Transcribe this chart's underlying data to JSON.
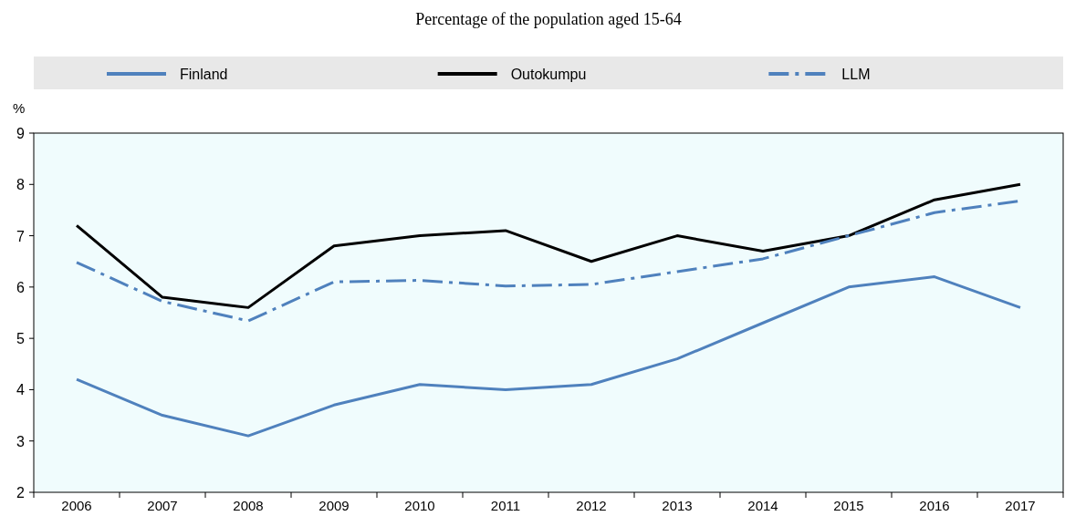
{
  "chart_data": {
    "type": "line",
    "title": "Percentage of the population aged 15-64",
    "ylabel": "%",
    "categories": [
      "2006",
      "2007",
      "2008",
      "2009",
      "2010",
      "2011",
      "2012",
      "2013",
      "2014",
      "2015",
      "2016",
      "2017"
    ],
    "series": [
      {
        "name": "Finland",
        "color": "#4f81bd",
        "values": [
          4.2,
          3.5,
          3.1,
          3.7,
          4.1,
          4.0,
          4.1,
          4.6,
          5.3,
          6.0,
          6.2,
          5.6
        ]
      },
      {
        "name": "Outokumpu",
        "color": "#000000",
        "values": [
          7.2,
          5.8,
          5.6,
          6.8,
          7.0,
          7.1,
          6.5,
          7.0,
          6.7,
          7.0,
          7.7,
          8.0
        ]
      },
      {
        "name": "LLM",
        "color": "#4f81bd",
        "line_style": "dashed",
        "values": [
          6.48,
          5.72,
          5.34,
          6.1,
          6.13,
          6.02,
          6.05,
          6.3,
          6.55,
          7.0,
          7.45,
          7.68
        ]
      }
    ],
    "ylim": [
      2,
      9
    ],
    "yticks": [
      2,
      3,
      4,
      5,
      6,
      7,
      8,
      9
    ],
    "grid": false,
    "legend": "top",
    "line_style": "solid",
    "marker": "none"
  }
}
